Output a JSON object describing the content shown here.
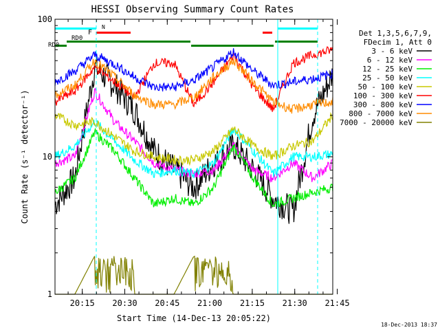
{
  "chart_data": {
    "type": "line",
    "title": "HESSI Observing Summary Count Rates",
    "xlabel": "Start Time (14-Dec-13 20:05:22)",
    "ylabel": "Count Rate (s⁻¹ detector⁻¹)",
    "yscale": "log",
    "ylim": [
      1,
      100
    ],
    "xlim_minutes": [
      20.3667,
      44.0
    ],
    "x_tick_labels": [
      "20:15",
      "20:30",
      "20:45",
      "21:00",
      "21:15",
      "21:30",
      "21:45"
    ],
    "y_tick_labels": [
      "1",
      "10",
      "100"
    ],
    "timestamp": "18-Dec-2013 18:37",
    "legend_header": [
      "Det 1,3,5,6,7,9,",
      "FDecim 1, Att 0"
    ],
    "grid": false,
    "legend_position": "right",
    "series": [
      {
        "name": "3 - 6 keV",
        "color": "#000000",
        "t": [
          20.37,
          20.45,
          20.6,
          20.75,
          20.9,
          21.05,
          21.2,
          21.3,
          21.4,
          21.5,
          21.6,
          21.75,
          21.9,
          22.05,
          22.25
        ],
        "values": [
          4.5,
          7,
          45,
          33,
          22,
          11,
          8,
          6,
          9,
          12,
          8,
          5,
          4,
          20,
          40
        ]
      },
      {
        "name": "6 - 12 keV",
        "color": "#ff00ff",
        "t": [
          20.37,
          20.45,
          20.6,
          20.75,
          20.9,
          21.05,
          21.2,
          21.3,
          21.4,
          21.5,
          21.6,
          21.75,
          21.9,
          22.05,
          22.25
        ],
        "values": [
          9,
          10,
          30,
          18,
          13,
          9,
          8,
          7.5,
          8,
          12,
          8,
          7,
          9,
          7,
          9
        ]
      },
      {
        "name": "12 - 25 keV",
        "color": "#00ee00",
        "t": [
          20.37,
          20.45,
          20.6,
          20.75,
          20.9,
          21.05,
          21.2,
          21.3,
          21.4,
          21.5,
          21.6,
          21.75,
          21.9,
          22.05,
          22.25
        ],
        "values": [
          5.5,
          7,
          15,
          11,
          7,
          4.5,
          5,
          4.5,
          6,
          12,
          7,
          4.5,
          5,
          5.5,
          6
        ]
      },
      {
        "name": "25 - 50 keV",
        "color": "#00ffff",
        "t": [
          20.37,
          20.45,
          20.6,
          20.75,
          20.9,
          21.05,
          21.2,
          21.3,
          21.4,
          21.5,
          21.6,
          21.75,
          21.9,
          22.05,
          22.25
        ],
        "values": [
          10,
          12,
          18,
          13,
          9.5,
          7.5,
          8,
          7.5,
          9,
          16,
          11,
          7.5,
          10,
          10,
          10.5
        ]
      },
      {
        "name": "50 - 100 keV",
        "color": "#c8c800",
        "t": [
          20.37,
          20.45,
          20.6,
          20.75,
          20.9,
          21.05,
          21.2,
          21.3,
          21.4,
          21.5,
          21.6,
          21.75,
          21.9,
          22.05,
          22.25
        ],
        "values": [
          20,
          17,
          18,
          14,
          11,
          10,
          9.5,
          9.5,
          11,
          16,
          12,
          10,
          12,
          13,
          20
        ]
      },
      {
        "name": "100 - 300 keV",
        "color": "#ff0000",
        "t": [
          20.37,
          20.45,
          20.6,
          20.75,
          20.9,
          21.05,
          21.2,
          21.3,
          21.4,
          21.5,
          21.6,
          21.75,
          21.9,
          22.05,
          22.25
        ],
        "values": [
          25,
          30,
          45,
          35,
          27,
          48,
          48,
          24,
          35,
          55,
          32,
          22,
          48,
          55,
          60
        ]
      },
      {
        "name": "300 - 800 keV",
        "color": "#0000ff",
        "t": [
          20.37,
          20.45,
          20.6,
          20.75,
          20.9,
          21.05,
          21.2,
          21.3,
          21.4,
          21.5,
          21.6,
          21.75,
          21.9,
          22.05,
          22.25
        ],
        "values": [
          35,
          42,
          55,
          47,
          38,
          32,
          32,
          36,
          45,
          58,
          42,
          33,
          35,
          37,
          40
        ]
      },
      {
        "name": "800 - 7000 keV",
        "color": "#ff8c00",
        "t": [
          20.37,
          20.45,
          20.6,
          20.75,
          20.9,
          21.05,
          21.2,
          21.3,
          21.4,
          21.5,
          21.6,
          21.75,
          21.9,
          22.05,
          22.25
        ],
        "values": [
          28,
          33,
          50,
          38,
          28,
          24,
          24,
          27,
          38,
          50,
          35,
          25,
          22,
          24,
          25
        ]
      },
      {
        "name": "7000 - 20000 keV",
        "color": "#808000",
        "t": [
          20.37,
          20.45,
          20.6,
          20.75,
          20.9,
          21.05,
          21.2,
          21.3,
          21.4,
          21.5,
          21.6,
          21.75,
          21.9,
          22.05,
          22.25
        ],
        "values": [
          1,
          1,
          1.9,
          1.6,
          1,
          1,
          1,
          1.9,
          1.6,
          1,
          1,
          1,
          1,
          1,
          1
        ]
      }
    ],
    "flag_bars": [
      {
        "label": "N",
        "color": "#00ffff"
      },
      {
        "label": "F",
        "color": "#ff0000"
      },
      {
        "label": "RD0",
        "color": "#008000"
      },
      {
        "label": "RD0",
        "color": "#008000"
      }
    ]
  }
}
